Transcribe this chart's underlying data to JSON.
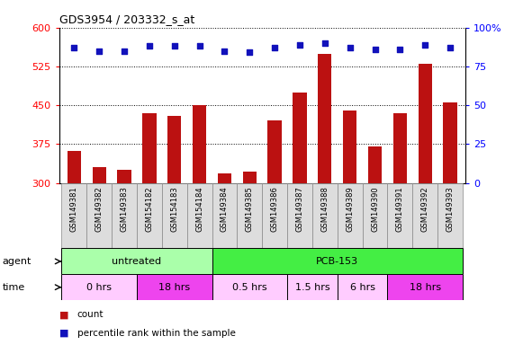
{
  "title": "GDS3954 / 203332_s_at",
  "samples": [
    "GSM149381",
    "GSM149382",
    "GSM149383",
    "GSM154182",
    "GSM154183",
    "GSM154184",
    "GSM149384",
    "GSM149385",
    "GSM149386",
    "GSM149387",
    "GSM149388",
    "GSM149389",
    "GSM149390",
    "GSM149391",
    "GSM149392",
    "GSM149393"
  ],
  "counts": [
    362,
    330,
    325,
    435,
    430,
    450,
    318,
    322,
    420,
    475,
    550,
    440,
    370,
    435,
    530,
    455
  ],
  "percentile_ranks": [
    87,
    85,
    85,
    88,
    88,
    88,
    85,
    84,
    87,
    89,
    90,
    87,
    86,
    86,
    89,
    87
  ],
  "ylim_left": [
    300,
    600
  ],
  "yticks_left": [
    300,
    375,
    450,
    525,
    600
  ],
  "ylim_right": [
    0,
    100
  ],
  "yticks_right": [
    0,
    25,
    50,
    75,
    100
  ],
  "bar_color": "#bb1111",
  "dot_color": "#1111bb",
  "agent_groups": [
    {
      "label": "untreated",
      "start": 0,
      "end": 6,
      "color": "#aaffaa"
    },
    {
      "label": "PCB-153",
      "start": 6,
      "end": 16,
      "color": "#44ee44"
    }
  ],
  "time_groups": [
    {
      "label": "0 hrs",
      "start": 0,
      "end": 3,
      "color": "#ffccff"
    },
    {
      "label": "18 hrs",
      "start": 3,
      "end": 6,
      "color": "#ee44ee"
    },
    {
      "label": "0.5 hrs",
      "start": 6,
      "end": 9,
      "color": "#ffccff"
    },
    {
      "label": "1.5 hrs",
      "start": 9,
      "end": 11,
      "color": "#ffccff"
    },
    {
      "label": "6 hrs",
      "start": 11,
      "end": 13,
      "color": "#ffccff"
    },
    {
      "label": "18 hrs",
      "start": 13,
      "end": 16,
      "color": "#ee44ee"
    }
  ],
  "legend_count_color": "#bb1111",
  "legend_dot_color": "#1111bb",
  "background_color": "#ffffff",
  "plot_bg_color": "#ffffff",
  "bar_width": 0.55,
  "tick_label_bg": "#dddddd",
  "tick_label_border": "#888888"
}
